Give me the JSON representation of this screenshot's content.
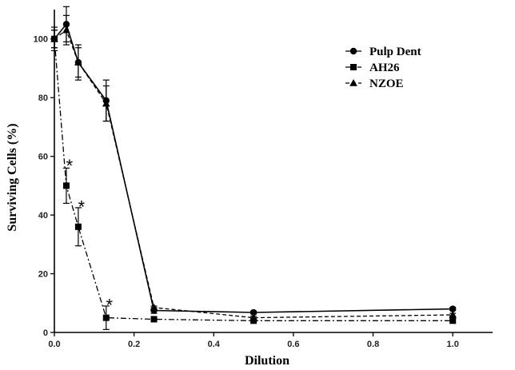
{
  "chart_data": {
    "type": "line",
    "title": "",
    "xlabel": "Dilution",
    "ylabel": "Surviving Cells (%)",
    "xlim": [
      0,
      1.1
    ],
    "ylim": [
      0,
      110
    ],
    "xticks": [
      0.0,
      0.2,
      0.4,
      0.6,
      0.8,
      1.0
    ],
    "xtick_labels": [
      "0.0",
      "0.2",
      "0.4",
      "0.6",
      "0.8",
      "1.0"
    ],
    "yticks": [
      0,
      20,
      40,
      60,
      80,
      100
    ],
    "ytick_labels": [
      "0",
      "20",
      "40",
      "60",
      "80",
      "100"
    ],
    "grid": false,
    "legend_position": "top-right",
    "series": [
      {
        "name": "Pulp Dent",
        "marker": "circle",
        "line_style": "solid",
        "color": "#000000",
        "points": [
          {
            "x": 0.0,
            "y": 100,
            "err": 4
          },
          {
            "x": 0.03,
            "y": 105,
            "err": 6
          },
          {
            "x": 0.06,
            "y": 92,
            "err": 6
          },
          {
            "x": 0.13,
            "y": 79,
            "err": 7
          },
          {
            "x": 0.25,
            "y": 7.5,
            "err": 1
          },
          {
            "x": 0.5,
            "y": 6.8,
            "err": 0.5
          },
          {
            "x": 1.0,
            "y": 8,
            "err": 0.5
          }
        ]
      },
      {
        "name": "AH26",
        "marker": "square",
        "line_style": "dashdot",
        "color": "#000000",
        "points": [
          {
            "x": 0.0,
            "y": 100,
            "err": 3
          },
          {
            "x": 0.03,
            "y": 50,
            "err": 6
          },
          {
            "x": 0.06,
            "y": 36,
            "err": 6.5
          },
          {
            "x": 0.13,
            "y": 5,
            "err": 4
          },
          {
            "x": 0.25,
            "y": 4.5,
            "err": 0.5
          },
          {
            "x": 0.5,
            "y": 4,
            "err": 0.5
          },
          {
            "x": 1.0,
            "y": 4,
            "err": 0.5
          }
        ]
      },
      {
        "name": "NZOE",
        "marker": "triangle",
        "line_style": "dashed",
        "color": "#000000",
        "points": [
          {
            "x": 0.0,
            "y": 100,
            "err": 3
          },
          {
            "x": 0.03,
            "y": 103,
            "err": 5
          },
          {
            "x": 0.06,
            "y": 92,
            "err": 5
          },
          {
            "x": 0.13,
            "y": 78,
            "err": 6
          },
          {
            "x": 0.25,
            "y": 8.5,
            "err": 0.5
          },
          {
            "x": 0.5,
            "y": 5,
            "err": 0.5
          },
          {
            "x": 1.0,
            "y": 6,
            "err": 0.5
          }
        ]
      }
    ],
    "annotations": [
      {
        "text": "*",
        "x": 0.03,
        "y": 58
      },
      {
        "text": "*",
        "x": 0.06,
        "y": 44
      },
      {
        "text": "*",
        "x": 0.13,
        "y": 10.5
      }
    ]
  }
}
